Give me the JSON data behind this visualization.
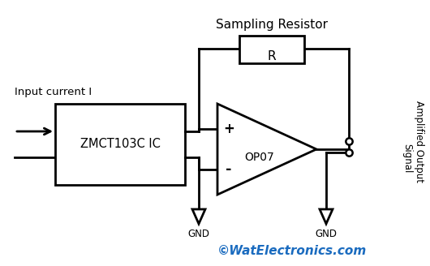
{
  "background_color": "#ffffff",
  "line_color": "#000000",
  "watermark": "©WatElectronics.com",
  "watermark_color": "#1a6bbf",
  "labels": {
    "sampling_resistor": "Sampling Resistor",
    "resistor_symbol": "R",
    "zmct_ic": "ZMCT103C IC",
    "opamp": "OP07",
    "input_current": "Input current I",
    "amplified_output": "Amplified Output",
    "signal": "Signal",
    "gnd1": "GND",
    "gnd2": "GND",
    "plus": "+",
    "minus": "-"
  },
  "figsize": [
    5.3,
    3.28
  ],
  "dpi": 100
}
